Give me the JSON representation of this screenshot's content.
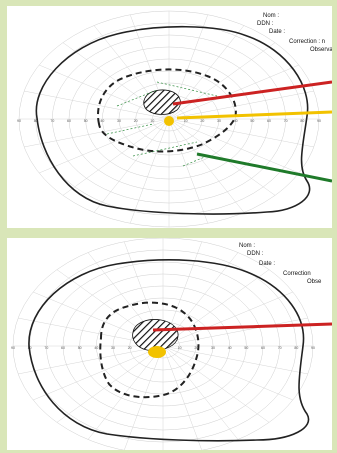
{
  "top_chart": {
    "form_labels": {
      "name": "Nom :",
      "dob": "DDN :",
      "date": "Date :",
      "correction": "Correction : n",
      "observation": "Observa"
    },
    "scale_labels": [
      "90",
      "80",
      "70",
      "60",
      "50",
      "40",
      "30",
      "20",
      "10",
      "10",
      "20",
      "30",
      "40",
      "50",
      "60",
      "70",
      "80",
      "90"
    ],
    "pointer_colors": [
      "#cc2222",
      "#f2c200",
      "#1f7a2a"
    ]
  },
  "bottom_chart": {
    "form_labels": {
      "name": "Nom :",
      "dob": "DDN :",
      "date": "Date :",
      "correction": "Correction",
      "observation": "Obse"
    },
    "scale_labels": [
      "90",
      "80",
      "70",
      "60",
      "50",
      "40",
      "30",
      "20",
      "10",
      "10",
      "20",
      "30",
      "40",
      "50",
      "60",
      "70",
      "80",
      "90"
    ],
    "pointer_colors": [
      "#cc2222"
    ]
  },
  "colors": {
    "background": "#d9e6b8",
    "panel": "#ffffff",
    "grid": "#c8c8c8",
    "scotoma_fill": "#f2c200"
  }
}
